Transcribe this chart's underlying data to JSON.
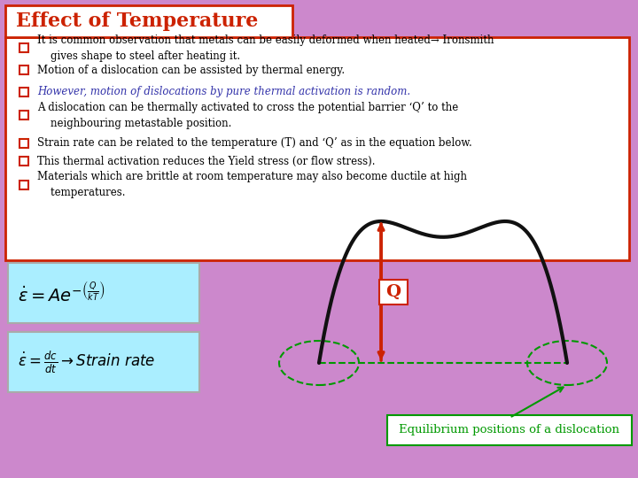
{
  "title": "Effect of Temperature",
  "title_color": "#cc2200",
  "title_bg": "#ffffff",
  "title_border": "#cc2200",
  "background_color": "#cc88cc",
  "text_box_bg": "#ffffff",
  "text_box_border": "#cc2200",
  "bullet_color": "#cc2200",
  "bullets": [
    {
      "text": "It is common observation that metals can be easily deformed when heated→ Ironsmith\n    gives shape to steel after heating it.",
      "italic": false,
      "color": "#000000"
    },
    {
      "text": "Motion of a dislocation can be assisted by thermal energy.",
      "italic": false,
      "color": "#000000"
    },
    {
      "text": "However, motion of dislocations by pure thermal activation is random.",
      "italic": true,
      "color": "#3333aa"
    },
    {
      "text": "A dislocation can be thermally activated to cross the potential barrier ‘Q’ to the\n    neighbouring metastable position.",
      "italic": false,
      "color": "#000000"
    },
    {
      "text": "Strain rate can be related to the temperature (T) and ‘Q’ as in the equation below.",
      "italic": false,
      "color": "#000000"
    },
    {
      "text": "This thermal activation reduces the Yield stress (or flow stress).",
      "italic": false,
      "color": "#000000"
    },
    {
      "text": "Materials which are brittle at room temperature may also become ductile at high\n    temperatures.",
      "italic": false,
      "color": "#000000"
    }
  ],
  "eq_box_bg": "#aaeeff",
  "eq_box_border": "#888888",
  "eq2_box_bg": "#aaeeff",
  "curve_color": "#111111",
  "arrow_color": "#cc2200",
  "Q_box_color": "#cc2200",
  "Q_box_bg": "#ffffff",
  "dashed_color": "#009900",
  "ellipse_color": "#009900",
  "label_box_bg": "#ffffff",
  "label_box_border": "#009900",
  "label_text": "Equilibrium positions of a dislocation",
  "label_color": "#009900"
}
